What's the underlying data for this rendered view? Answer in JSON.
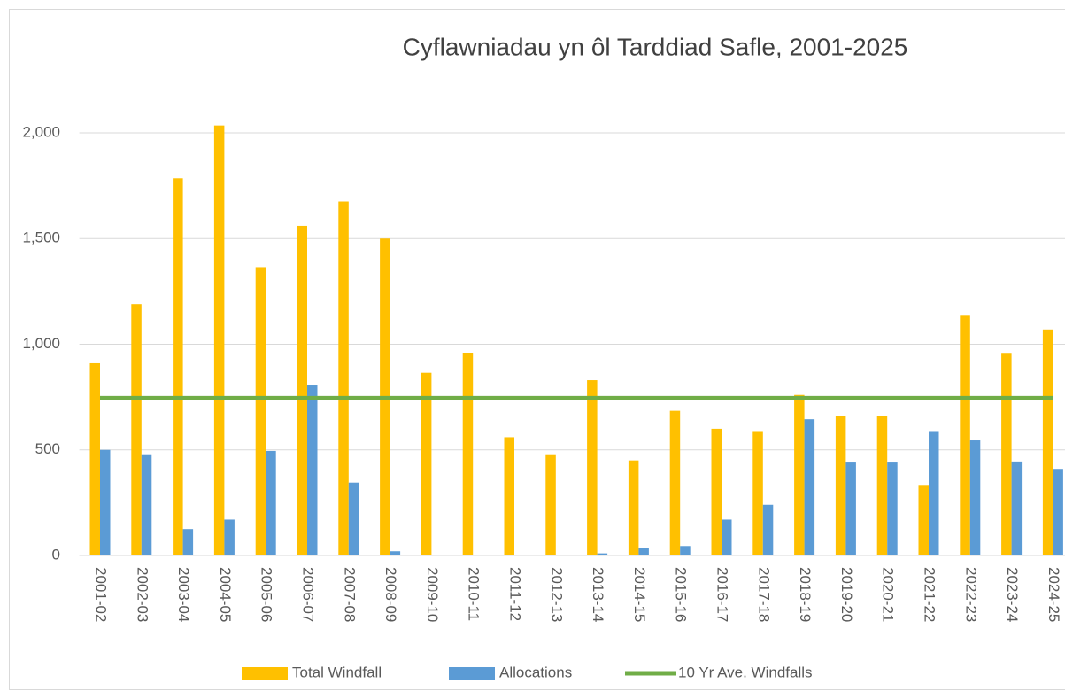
{
  "chart_data": {
    "type": "bar",
    "title": "Cyflawniadau yn ôl Tarddiad Safle, 2001-2025",
    "categories": [
      "2001-02",
      "2002-03",
      "2003-04",
      "2004-05",
      "2005-06",
      "2006-07",
      "2007-08",
      "2008-09",
      "2009-10",
      "2010-11",
      "2011-12",
      "2012-13",
      "2013-14",
      "2014-15",
      "2015-16",
      "2016-17",
      "2017-18",
      "2018-19",
      "2019-20",
      "2020-21",
      "2021-22",
      "2022-23",
      "2023-24",
      "2024-25"
    ],
    "series": [
      {
        "name": "Total Windfall",
        "color": "#FFC000",
        "type": "bar",
        "values": [
          910,
          1190,
          1785,
          2035,
          1365,
          1560,
          1675,
          1500,
          865,
          960,
          560,
          475,
          830,
          450,
          685,
          600,
          585,
          760,
          660,
          660,
          330,
          1135,
          955,
          1070
        ]
      },
      {
        "name": "Allocations",
        "color": "#5B9BD5",
        "type": "bar",
        "values": [
          500,
          475,
          125,
          170,
          495,
          805,
          345,
          20,
          0,
          0,
          0,
          0,
          10,
          35,
          45,
          170,
          240,
          645,
          440,
          440,
          585,
          545,
          445,
          410
        ]
      },
      {
        "name": "10 Yr Ave. Windfalls",
        "color": "#70AD47",
        "type": "line",
        "values": [
          745,
          745,
          745,
          745,
          745,
          745,
          745,
          745,
          745,
          745,
          745,
          745,
          745,
          745,
          745,
          745,
          745,
          745,
          745,
          745,
          745,
          745,
          745,
          745
        ]
      }
    ],
    "ylim": [
      0,
      2000
    ],
    "yticks": [
      0,
      500,
      {
        "value": 1000,
        "label": "1,000"
      },
      {
        "value": 1500,
        "label": "1,500"
      },
      {
        "value": 2000,
        "label": "2,000"
      }
    ],
    "grid": true,
    "legend": "bottom"
  }
}
